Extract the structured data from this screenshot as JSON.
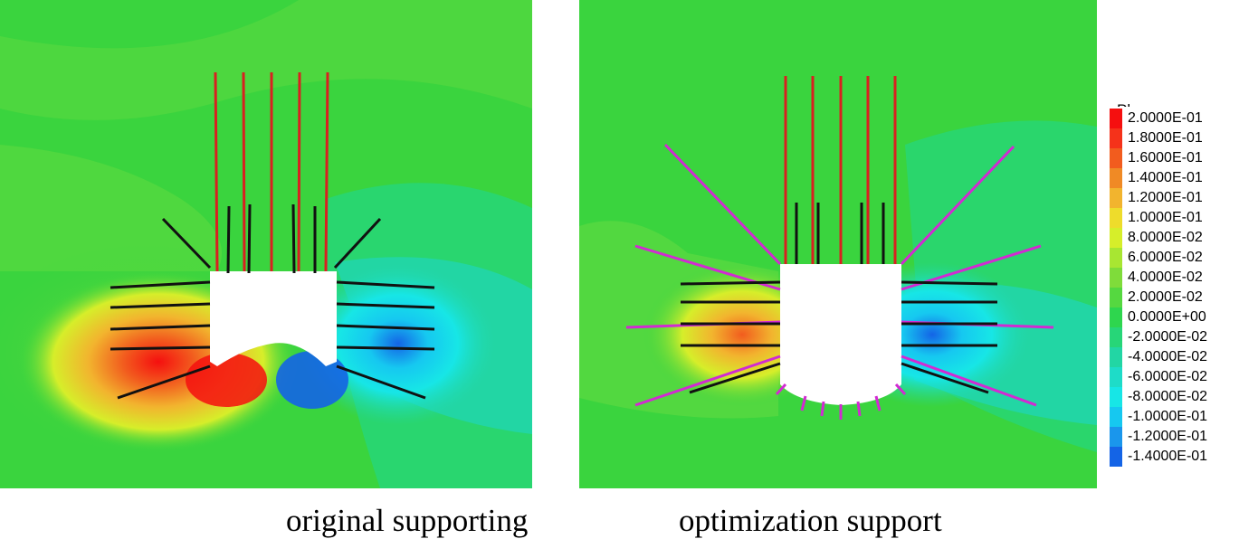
{
  "panels": [
    {
      "id": "left",
      "caption": "original supporting"
    },
    {
      "id": "right",
      "caption": "optimization support"
    }
  ],
  "legend": {
    "title": "Plane: on",
    "entries": [
      {
        "label": "2.0000E-01",
        "color": "#f50f0f"
      },
      {
        "label": "1.8000E-01",
        "color": "#f5321a"
      },
      {
        "label": "1.6000E-01",
        "color": "#f25c1e"
      },
      {
        "label": "1.4000E-01",
        "color": "#f08a25"
      },
      {
        "label": "1.2000E-01",
        "color": "#f2b42e"
      },
      {
        "label": "1.0000E-01",
        "color": "#eedc2b"
      },
      {
        "label": "8.0000E-02",
        "color": "#d6ee2a"
      },
      {
        "label": "6.0000E-02",
        "color": "#a8e632"
      },
      {
        "label": "4.0000E-02",
        "color": "#7fdc3a"
      },
      {
        "label": "2.0000E-02",
        "color": "#55d840"
      },
      {
        "label": "0.0000E+00",
        "color": "#2ed64e"
      },
      {
        "label": "-2.0000E-02",
        "color": "#27d678"
      },
      {
        "label": "-4.0000E-02",
        "color": "#22d6a4"
      },
      {
        "label": "-6.0000E-02",
        "color": "#1edcc8"
      },
      {
        "label": "-8.0000E-02",
        "color": "#17e6e6"
      },
      {
        "label": "-1.0000E-01",
        "color": "#16c8f0"
      },
      {
        "label": "-1.2000E-01",
        "color": "#1a96ec"
      },
      {
        "label": "-1.4000E-01",
        "color": "#1464e6"
      }
    ]
  },
  "colors": {
    "background_green": "#3ad43e",
    "bolt_black": "#111111",
    "anchor_red": "#d92020",
    "anchor_magenta": "#d22ad2"
  }
}
